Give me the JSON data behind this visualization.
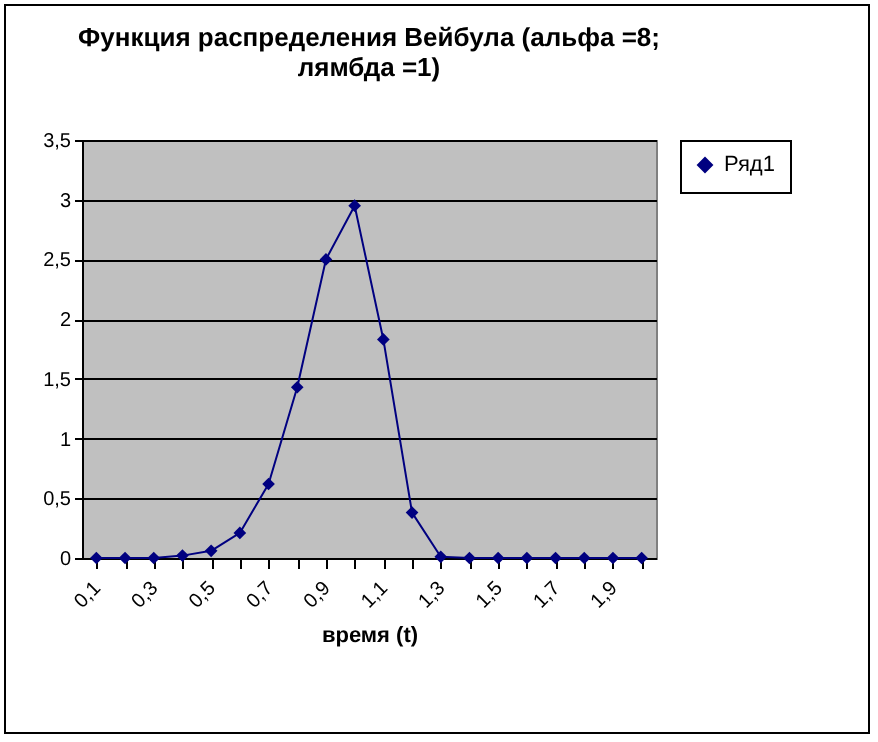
{
  "chart_data": {
    "type": "line",
    "title": "Функция распределения Вейбула (альфа =8; лямбда =1)",
    "xlabel": "время (t)",
    "categories": [
      "0,1",
      null,
      "0,3",
      null,
      "0,5",
      null,
      "0,7",
      null,
      "0,9",
      null,
      "1,1",
      null,
      "1,3",
      null,
      "1,5",
      null,
      "1,7",
      null,
      "1,9",
      null
    ],
    "series": [
      {
        "name": "Ряд1",
        "color": "#000080",
        "values": [
          0,
          0,
          0,
          0.02,
          0.06,
          0.21,
          0.62,
          1.43,
          2.5,
          2.95,
          1.83,
          0.38,
          0.01,
          0,
          0,
          0,
          0,
          0,
          0,
          0
        ]
      }
    ],
    "ylim": [
      0,
      3.5
    ],
    "yticks": [
      0,
      {
        "value": 0.5,
        "label": "0,5"
      },
      1,
      {
        "value": 1.5,
        "label": "1,5"
      },
      2,
      {
        "value": 2.5,
        "label": "2,5"
      },
      3,
      {
        "value": 3.5,
        "label": "3,5"
      }
    ],
    "grid": "y",
    "legend": "right",
    "marker": "diamond",
    "line_style": "solid"
  }
}
